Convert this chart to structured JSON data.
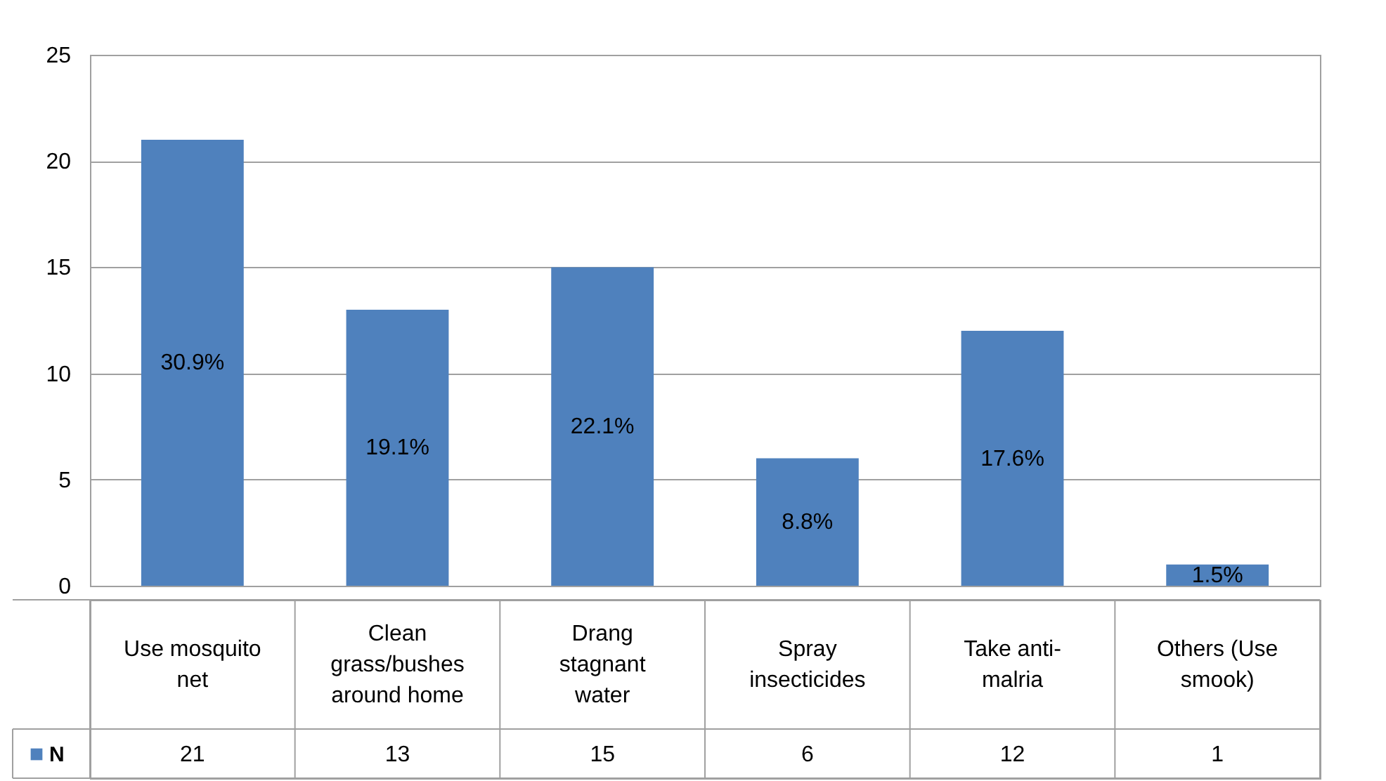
{
  "chart_data": {
    "type": "bar",
    "categories": [
      "Use mosquito net",
      "Clean grass/bushes around home",
      "Drang stagnant water",
      "Spray insecticides",
      "Take anti-malria",
      "Others (Use smook)"
    ],
    "series": [
      {
        "name": "N",
        "color": "#4f81bd",
        "values": [
          21,
          13,
          15,
          6,
          12,
          1
        ]
      }
    ],
    "annotations": [
      "30.9%",
      "19.1%",
      "22.1%",
      "8.8%",
      "17.6%",
      "1.5%"
    ],
    "ylim": [
      0,
      25
    ],
    "yticks": [
      0,
      5,
      10,
      15,
      20,
      25
    ],
    "grid": "y",
    "data_labels": true,
    "legend": "bottom left"
  }
}
